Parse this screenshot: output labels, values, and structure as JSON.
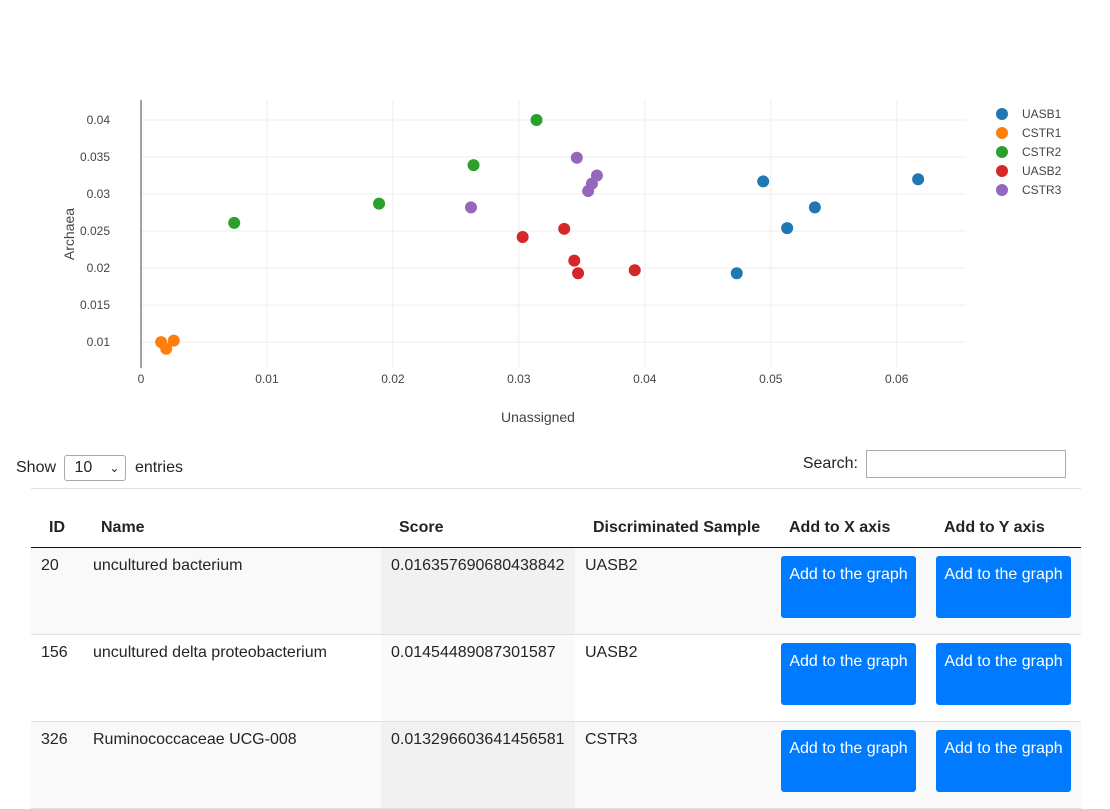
{
  "chart_data": {
    "type": "scatter",
    "title": "",
    "xlabel": "Unassigned",
    "ylabel": "Archaea",
    "xlim": [
      0,
      0.0655
    ],
    "ylim": [
      0.0065,
      0.0427
    ],
    "x_ticks": [
      "0",
      "0.01",
      "0.02",
      "0.03",
      "0.04",
      "0.05",
      "0.06"
    ],
    "x_tick_values": [
      0,
      0.01,
      0.02,
      0.03,
      0.04,
      0.05,
      0.06
    ],
    "y_ticks": [
      "0.01",
      "0.015",
      "0.02",
      "0.025",
      "0.03",
      "0.035",
      "0.04"
    ],
    "y_tick_values": [
      0.01,
      0.015,
      0.02,
      0.025,
      0.03,
      0.035,
      0.04
    ],
    "grid": true,
    "legend_position": "top-right",
    "series": [
      {
        "name": "UASB1",
        "color": "#1f77b4",
        "points": [
          [
            0.0473,
            0.0193
          ],
          [
            0.0494,
            0.0317
          ],
          [
            0.0513,
            0.0254
          ],
          [
            0.0535,
            0.0282
          ],
          [
            0.0617,
            0.032
          ]
        ]
      },
      {
        "name": "CSTR1",
        "color": "#ff7f0e",
        "points": [
          [
            0.0016,
            0.01
          ],
          [
            0.002,
            0.0091
          ],
          [
            0.0026,
            0.0102
          ]
        ]
      },
      {
        "name": "CSTR2",
        "color": "#2ca02c",
        "points": [
          [
            0.0074,
            0.0261
          ],
          [
            0.0189,
            0.0287
          ],
          [
            0.0264,
            0.0339
          ],
          [
            0.0314,
            0.04
          ]
        ]
      },
      {
        "name": "UASB2",
        "color": "#d62728",
        "points": [
          [
            0.0303,
            0.0242
          ],
          [
            0.0336,
            0.0253
          ],
          [
            0.0344,
            0.021
          ],
          [
            0.0347,
            0.0193
          ],
          [
            0.0392,
            0.0197
          ]
        ]
      },
      {
        "name": "CSTR3",
        "color": "#9467bd",
        "points": [
          [
            0.0262,
            0.0282
          ],
          [
            0.0346,
            0.0349
          ],
          [
            0.0355,
            0.0304
          ],
          [
            0.0358,
            0.0314
          ],
          [
            0.0362,
            0.0325
          ]
        ]
      }
    ]
  },
  "controls": {
    "show": "Show",
    "entries_value": "10",
    "entries": "entries",
    "search_label": "Search:",
    "search_value": ""
  },
  "table": {
    "headers": {
      "id": "ID",
      "name": "Name",
      "score": "Score",
      "sample": "Discriminated Sample",
      "add_x": "Add to X axis",
      "add_y": "Add to Y axis"
    },
    "button_label": "Add to the graph",
    "rows": [
      {
        "id": "20",
        "name": "uncultured bacterium",
        "score": "0.016357690680438842",
        "sample": "UASB2"
      },
      {
        "id": "156",
        "name": "uncultured delta proteobacterium",
        "score": "0.01454489087301587",
        "sample": "UASB2"
      },
      {
        "id": "326",
        "name": "Ruminococcaceae UCG-008",
        "score": "0.013296603641456581",
        "sample": "CSTR3"
      }
    ]
  }
}
